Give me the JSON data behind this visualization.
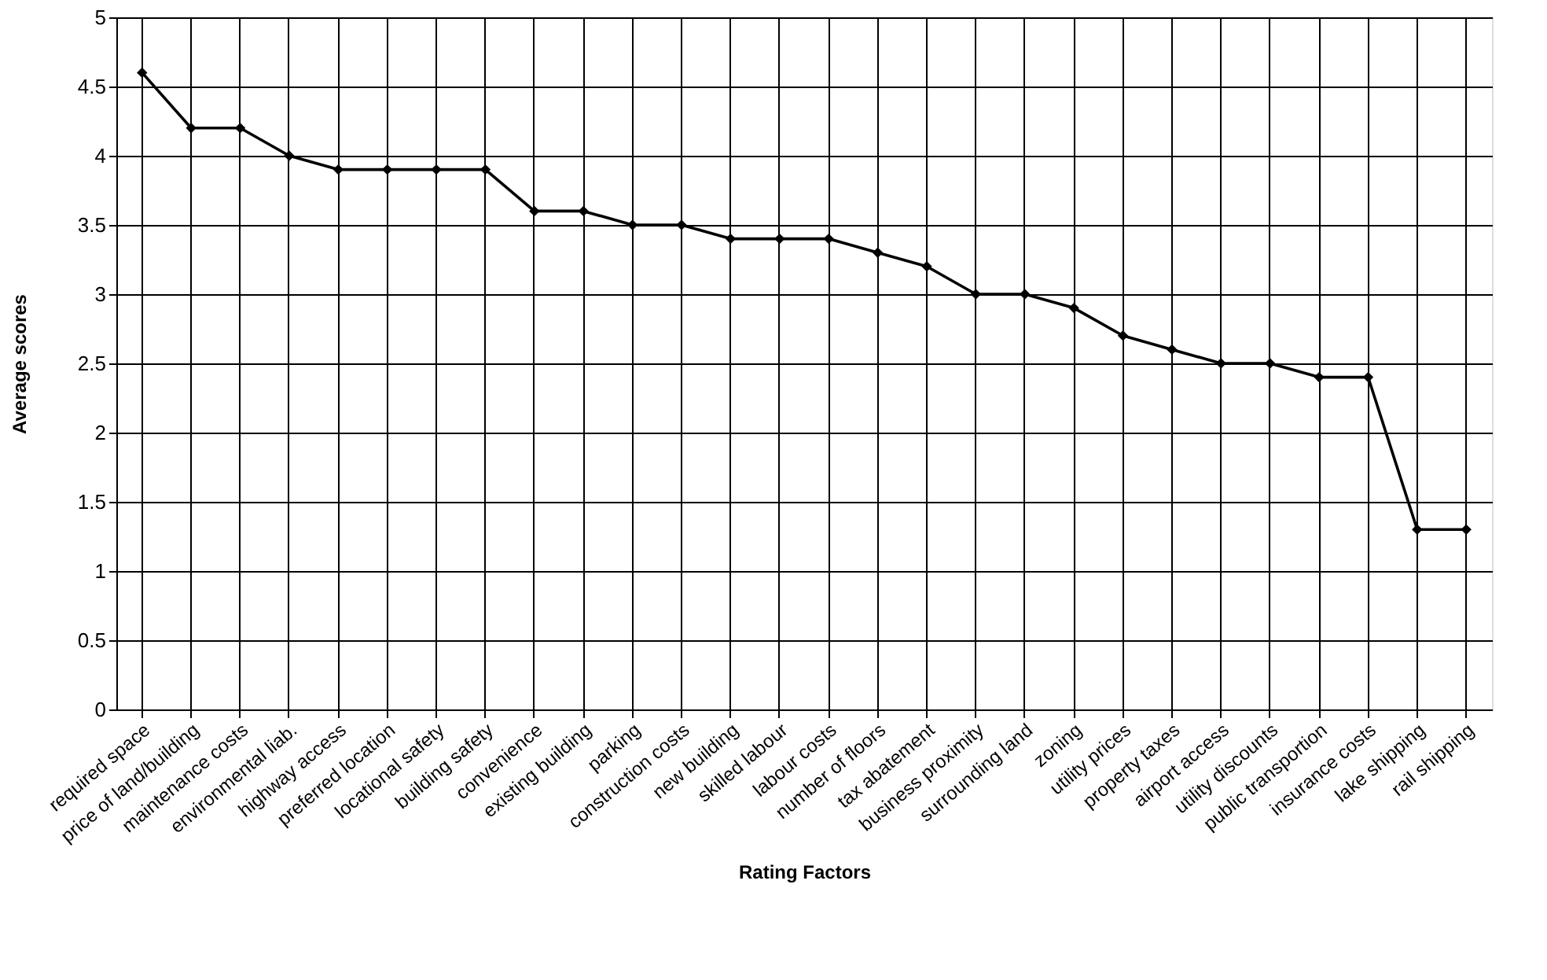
{
  "chart_data": {
    "type": "line",
    "xlabel": "Rating Factors",
    "ylabel": "Average scores",
    "categories": [
      "required space",
      "price of land/building",
      "maintenance costs",
      "environmental liab.",
      "highway access",
      "preferred location",
      "locational safety",
      "building safety",
      "convenience",
      "existing building",
      "parking",
      "construction costs",
      "new building",
      "skilled labour",
      "labour costs",
      "number of floors",
      "tax abatement",
      "business proximity",
      "surrounding land",
      "zoning",
      "utility prices",
      "property taxes",
      "airport  access",
      "utility discounts",
      "public transportion",
      "insurance costs",
      "lake shipping",
      "rail shipping"
    ],
    "series": [
      {
        "color": "#000000",
        "values": [
          4.6,
          4.2,
          4.2,
          4.0,
          3.9,
          3.9,
          3.9,
          3.9,
          3.6,
          3.6,
          3.5,
          3.5,
          3.4,
          3.4,
          3.4,
          3.3,
          3.2,
          3.0,
          3.0,
          2.9,
          2.7,
          2.6,
          2.5,
          2.5,
          2.4,
          2.4,
          1.3,
          1.3
        ]
      }
    ],
    "ylim": [
      0,
      5
    ],
    "yticks": [
      0,
      0.5,
      1,
      1.5,
      2,
      2.5,
      3,
      3.5,
      4,
      4.5,
      5
    ],
    "grid": true,
    "marker": "diamond",
    "line_style": "solid"
  }
}
